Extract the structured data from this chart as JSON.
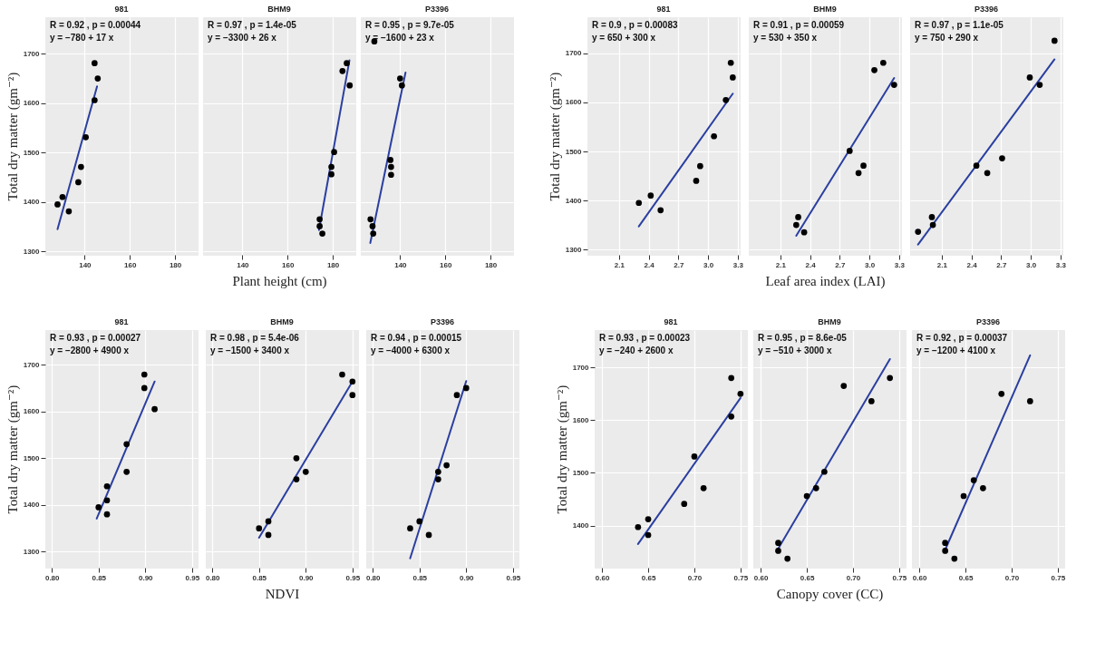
{
  "chart_data": [
    {
      "type": "scatter",
      "title": "981",
      "annotations": [
        "R = 0.92 , p = 0.00044",
        "y = −780 + 17 x"
      ],
      "ylabel": "Total dry matter (gm⁻²)",
      "xlim": [
        122.6,
        190
      ],
      "xticks": [
        140,
        160,
        180
      ],
      "ylim": [
        1293,
        1774
      ],
      "yticks": [
        1300,
        1400,
        1500,
        1600,
        1700
      ],
      "grid": true,
      "series": [
        {
          "color": "#000000",
          "x": [
            128.0,
            130.2,
            133.0,
            137.2,
            138.4,
            140.5,
            144.4,
            144.4,
            145.8
          ],
          "values": [
            1395,
            1410,
            1381,
            1440,
            1471,
            1531,
            1606,
            1681,
            1650
          ]
        },
        {
          "type": "line",
          "color": "#2b3fa0",
          "x": [
            128.0,
            145.5
          ],
          "values": [
            1345,
            1634
          ]
        }
      ]
    },
    {
      "type": "scatter",
      "title": "BHM9",
      "annotations": [
        "R = 0.97 , p = 1.4e-05",
        "y = −3300 + 26 x"
      ],
      "xlabel": "Plant height (cm)",
      "xlim": [
        122.6,
        190
      ],
      "xticks": [
        140,
        160,
        180
      ],
      "ylim": [
        1293,
        1774
      ],
      "yticks": [
        1300,
        1400,
        1500,
        1600,
        1700
      ],
      "tick_labels": "x",
      "grid": true,
      "series": [
        {
          "color": "#000000",
          "x": [
            174.2,
            174.2,
            175.4,
            179.4,
            179.4,
            180.6,
            184.3,
            186.2,
            187.5
          ],
          "values": [
            1365,
            1351,
            1336,
            1471,
            1456,
            1501,
            1665,
            1681,
            1636
          ]
        },
        {
          "type": "line",
          "color": "#2b3fa0",
          "x": [
            173.9,
            187.4
          ],
          "values": [
            1343,
            1687
          ]
        }
      ]
    },
    {
      "type": "scatter",
      "title": "P3396",
      "annotations": [
        "R = 0.95 , p = 9.7e-05",
        "y = −1600 + 23 x"
      ],
      "xlim": [
        122.6,
        190
      ],
      "xticks": [
        140,
        160,
        180
      ],
      "ylim": [
        1293,
        1774
      ],
      "yticks": [
        1300,
        1400,
        1500,
        1600,
        1700
      ],
      "tick_labels": "x",
      "grid": true,
      "series": [
        {
          "color": "#000000",
          "x": [
            126.9,
            127.8,
            128.1,
            135.7,
            136.0,
            136.0,
            140.0,
            140.8,
            128.6
          ],
          "values": [
            1365,
            1351,
            1336,
            1485,
            1471,
            1455,
            1650,
            1636,
            1725
          ]
        },
        {
          "type": "line",
          "color": "#2b3fa0",
          "x": [
            126.8,
            142.4
          ],
          "values": [
            1317,
            1662
          ]
        }
      ]
    },
    {
      "type": "scatter",
      "title": "981",
      "annotations": [
        "R = 0.9 , p = 0.00083",
        "y = 650 + 300 x"
      ],
      "ylabel": "Total dry matter (gm⁻²)",
      "xlim": [
        1.78,
        3.32
      ],
      "xticks": [
        2.1,
        2.4,
        2.7,
        {
          "value": 3,
          "label": "3.0"
        },
        3.3
      ],
      "ylim": [
        1289,
        1774
      ],
      "yticks": [
        1300,
        1400,
        1500,
        1600,
        1700
      ],
      "grid": true,
      "series": [
        {
          "color": "#000000",
          "x": [
            2.3,
            2.42,
            2.52,
            2.88,
            2.92,
            3.06,
            3.18,
            3.23,
            3.25
          ],
          "values": [
            1395,
            1410,
            1380,
            1440,
            1470,
            1531,
            1605,
            1681,
            1651
          ]
        },
        {
          "type": "line",
          "color": "#2b3fa0",
          "x": [
            2.3,
            3.25
          ],
          "values": [
            1347,
            1618
          ]
        }
      ]
    },
    {
      "type": "scatter",
      "title": "BHM9",
      "annotations": [
        "R = 0.91 , p = 0.00059",
        "y = 530 + 350 x"
      ],
      "xlabel": "Leaf area index (LAI)",
      "xlim": [
        1.78,
        3.32
      ],
      "xticks": [
        2.1,
        2.4,
        2.7,
        {
          "value": 3,
          "label": "3.0"
        },
        3.3
      ],
      "ylim": [
        1289,
        1774
      ],
      "yticks": [
        1300,
        1400,
        1500,
        1600,
        1700
      ],
      "tick_labels": "x",
      "grid": true,
      "series": [
        {
          "color": "#000000",
          "x": [
            2.26,
            2.28,
            2.34,
            2.8,
            2.89,
            2.94,
            3.05,
            3.14,
            3.25
          ],
          "values": [
            1350,
            1366,
            1335,
            1501,
            1456,
            1471,
            1666,
            1681,
            1636
          ]
        },
        {
          "type": "line",
          "color": "#2b3fa0",
          "x": [
            2.26,
            3.25
          ],
          "values": [
            1328,
            1650
          ]
        }
      ]
    },
    {
      "type": "scatter",
      "title": "P3396",
      "annotations": [
        "R = 0.97 , p = 1.1e-05",
        "y = 750 + 290 x"
      ],
      "xlim": [
        1.78,
        3.32
      ],
      "xticks": [
        2.1,
        2.4,
        2.7,
        {
          "value": 3,
          "label": "3.0"
        },
        3.3
      ],
      "ylim": [
        1289,
        1774
      ],
      "yticks": [
        1300,
        1400,
        1500,
        1600,
        1700
      ],
      "tick_labels": "x",
      "grid": true,
      "series": [
        {
          "color": "#000000",
          "x": [
            1.86,
            2.0,
            2.01,
            2.45,
            2.56,
            2.71,
            2.99,
            3.09,
            3.24
          ],
          "values": [
            1336,
            1366,
            1350,
            1471,
            1456,
            1486,
            1651,
            1636,
            1726
          ]
        },
        {
          "type": "line",
          "color": "#2b3fa0",
          "x": [
            1.86,
            3.24
          ],
          "values": [
            1310,
            1688
          ]
        }
      ]
    },
    {
      "type": "scatter",
      "title": "981",
      "annotations": [
        "R = 0.93 , p = 0.00027",
        "y = −2800 + 4900 x"
      ],
      "ylabel": "Total dry matter (gm⁻²)",
      "xlim": [
        0.793,
        0.956
      ],
      "xticks": [
        {
          "value": 0.8,
          "label": "0.80"
        },
        0.85,
        {
          "value": 0.9,
          "label": "0.90"
        },
        0.95
      ],
      "ylim": [
        1266,
        1774
      ],
      "yticks": [
        1300,
        1400,
        1500,
        1600,
        1700
      ],
      "grid": true,
      "series": [
        {
          "color": "#000000",
          "x": [
            0.85,
            0.859,
            0.859,
            0.859,
            0.88,
            0.88,
            0.899,
            0.899,
            0.91
          ],
          "values": [
            1395,
            1410,
            1380,
            1440,
            1530,
            1471,
            1679,
            1650,
            1605
          ]
        },
        {
          "type": "line",
          "color": "#2b3fa0",
          "x": [
            0.848,
            0.91
          ],
          "values": [
            1371,
            1664
          ]
        }
      ]
    },
    {
      "type": "scatter",
      "title": "BHM9",
      "annotations": [
        "R = 0.98 , p = 5.4e-06",
        "y = −1500 + 3400 x"
      ],
      "xlabel": "NDVI",
      "xlim": [
        0.793,
        0.956
      ],
      "xticks": [
        {
          "value": 0.8,
          "label": "0.80"
        },
        0.85,
        {
          "value": 0.9,
          "label": "0.90"
        },
        0.95
      ],
      "ylim": [
        1266,
        1774
      ],
      "yticks": [
        1300,
        1400,
        1500,
        1600,
        1700
      ],
      "tick_labels": "x",
      "grid": true,
      "series": [
        {
          "color": "#000000",
          "x": [
            0.85,
            0.86,
            0.86,
            0.89,
            0.89,
            0.9,
            0.939,
            0.95,
            0.95
          ],
          "values": [
            1350,
            1365,
            1336,
            1500,
            1455,
            1471,
            1679,
            1664,
            1635
          ]
        },
        {
          "type": "line",
          "color": "#2b3fa0",
          "x": [
            0.85,
            0.95
          ],
          "values": [
            1330,
            1664
          ]
        }
      ]
    },
    {
      "type": "scatter",
      "title": "P3396",
      "annotations": [
        "R = 0.94 , p = 0.00015",
        "y = −4000 + 6300 x"
      ],
      "xlim": [
        0.793,
        0.956
      ],
      "xticks": [
        {
          "value": 0.8,
          "label": "0.80"
        },
        0.85,
        {
          "value": 0.9,
          "label": "0.90"
        },
        0.95
      ],
      "ylim": [
        1266,
        1774
      ],
      "yticks": [
        1300,
        1400,
        1500,
        1600,
        1700
      ],
      "tick_labels": "x",
      "grid": true,
      "series": [
        {
          "color": "#000000",
          "x": [
            0.84,
            0.85,
            0.86,
            0.87,
            0.87,
            0.879,
            0.89,
            0.9
          ],
          "values": [
            1350,
            1365,
            1336,
            1471,
            1455,
            1485,
            1635,
            1650
          ]
        },
        {
          "type": "line",
          "color": "#2b3fa0",
          "x": [
            0.84,
            0.9
          ],
          "values": [
            1286,
            1665
          ]
        }
      ]
    },
    {
      "type": "scatter",
      "title": "981",
      "annotations": [
        "R = 0.93 , p = 0.00023",
        "y = −240 + 2600 x"
      ],
      "ylabel": "Total dry matter (gm⁻²)",
      "xlim": [
        0.592,
        0.757
      ],
      "xticks": [
        {
          "value": 0.6,
          "label": "0.60"
        },
        0.65,
        {
          "value": 0.7,
          "label": "0.70"
        },
        0.75
      ],
      "ylim": [
        1320,
        1771
      ],
      "yticks": [
        1400,
        1500,
        1600,
        1700
      ],
      "grid": true,
      "series": [
        {
          "color": "#000000",
          "x": [
            0.639,
            0.65,
            0.65,
            0.689,
            0.7,
            0.71,
            0.74,
            0.74,
            0.75
          ],
          "values": [
            1397,
            1412,
            1382,
            1441,
            1531,
            1471,
            1607,
            1680,
            1650
          ]
        },
        {
          "type": "line",
          "color": "#2b3fa0",
          "x": [
            0.639,
            0.75
          ],
          "values": [
            1365,
            1642
          ]
        }
      ]
    },
    {
      "type": "scatter",
      "title": "BHM9",
      "annotations": [
        "R = 0.95 , p = 8.6e-05",
        "y = −510 + 3000 x"
      ],
      "xlabel": "Canopy cover (CC)",
      "xlim": [
        0.592,
        0.757
      ],
      "xticks": [
        {
          "value": 0.6,
          "label": "0.60"
        },
        0.65,
        {
          "value": 0.7,
          "label": "0.70"
        },
        0.75
      ],
      "ylim": [
        1320,
        1771
      ],
      "yticks": [
        1400,
        1500,
        1600,
        1700
      ],
      "tick_labels": "x",
      "grid": true,
      "series": [
        {
          "color": "#000000",
          "x": [
            0.619,
            0.619,
            0.629,
            0.65,
            0.66,
            0.669,
            0.69,
            0.72,
            0.74
          ],
          "values": [
            1367,
            1352,
            1337,
            1456,
            1471,
            1502,
            1665,
            1636,
            1680
          ]
        },
        {
          "type": "line",
          "color": "#2b3fa0",
          "x": [
            0.619,
            0.74
          ],
          "values": [
            1356,
            1716
          ]
        }
      ]
    },
    {
      "type": "scatter",
      "title": "P3396",
      "annotations": [
        "R = 0.92 , p = 0.00037",
        "y = −1200 + 4100 x"
      ],
      "xlim": [
        0.592,
        0.757
      ],
      "xticks": [
        {
          "value": 0.6,
          "label": "0.60"
        },
        0.65,
        {
          "value": 0.7,
          "label": "0.70"
        },
        0.75
      ],
      "ylim": [
        1320,
        1771
      ],
      "yticks": [
        1400,
        1500,
        1600,
        1700
      ],
      "tick_labels": "x",
      "grid": true,
      "series": [
        {
          "color": "#000000",
          "x": [
            0.628,
            0.628,
            0.638,
            0.648,
            0.659,
            0.669,
            0.689,
            0.72
          ],
          "values": [
            1367,
            1352,
            1337,
            1456,
            1486,
            1471,
            1650,
            1636
          ]
        },
        {
          "type": "line",
          "color": "#2b3fa0",
          "x": [
            0.628,
            0.72
          ],
          "values": [
            1354,
            1723
          ]
        }
      ]
    }
  ]
}
